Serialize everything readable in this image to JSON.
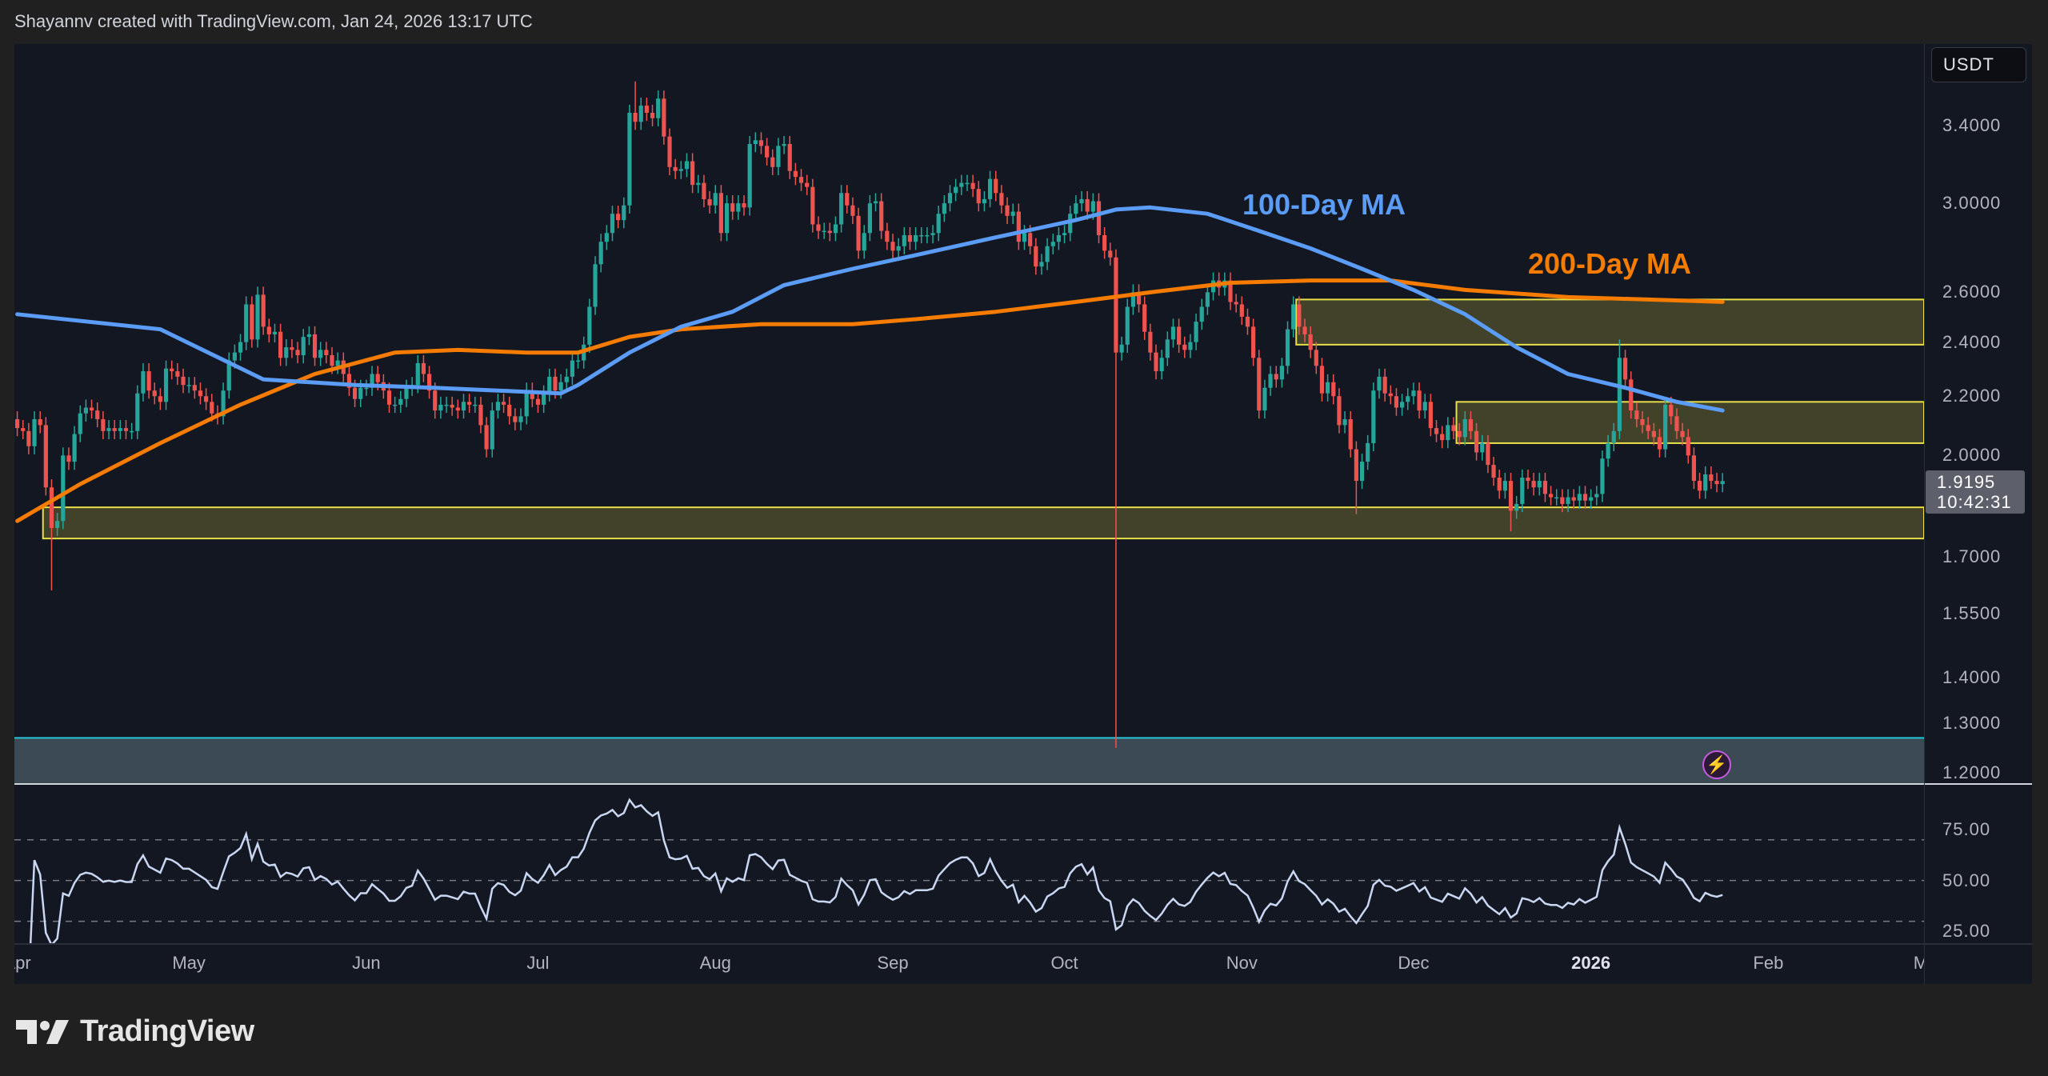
{
  "header": {
    "attribution": "Shayannv created with TradingView.com, Jan 24, 2026 13:17 UTC"
  },
  "price_axis": {
    "currency_button": "USDT",
    "ticks": [
      "3.4000",
      "3.0000",
      "2.6000",
      "2.4000",
      "2.2000",
      "2.0000",
      "1.7000",
      "1.5500",
      "1.4000",
      "1.3000",
      "1.2000"
    ],
    "last_price": "1.9195",
    "countdown": "10:42:31"
  },
  "rsi_axis": {
    "ticks": [
      "75.00",
      "50.00",
      "25.00"
    ],
    "levels": [
      70,
      50,
      30
    ]
  },
  "time_axis": {
    "labels": [
      {
        "text": "Apr",
        "date": "2025-04-01"
      },
      {
        "text": "May",
        "date": "2025-05-01"
      },
      {
        "text": "Jun",
        "date": "2025-06-01"
      },
      {
        "text": "Jul",
        "date": "2025-07-01"
      },
      {
        "text": "Aug",
        "date": "2025-08-01"
      },
      {
        "text": "Sep",
        "date": "2025-09-01"
      },
      {
        "text": "Oct",
        "date": "2025-10-01"
      },
      {
        "text": "Nov",
        "date": "2025-11-01"
      },
      {
        "text": "Dec",
        "date": "2025-12-01"
      },
      {
        "text": "2026",
        "date": "2026-01-01",
        "bold": true
      },
      {
        "text": "Feb",
        "date": "2026-02-01"
      },
      {
        "text": "Mar",
        "date": "2026-03-01"
      }
    ]
  },
  "annotations": {
    "ma100_label": "100-Day MA",
    "ma200_label": "200-Day MA"
  },
  "colors": {
    "background": "#131722",
    "up": "#26a69a",
    "down": "#ef5350",
    "ma100": "#5b9cf6",
    "ma200": "#f57c00",
    "zone_fill": "#4a4a2a",
    "zone_border": "#e8e04a",
    "rsi": "#c9d7f2",
    "lower_band": "#3b4a54"
  },
  "icons": {
    "alert": "lightning-icon",
    "logo": "tradingview-logo"
  },
  "footer": {
    "brand": "TradingView"
  },
  "chart_data": {
    "type": "candlestick",
    "scale": "log",
    "ylim": [
      1.2,
      3.6
    ],
    "start_date": "2025-04-01",
    "interval": "1D",
    "closes": [
      2.09,
      2.08,
      2.03,
      2.12,
      2.1,
      1.9,
      1.78,
      1.8,
      2.0,
      1.98,
      2.07,
      2.14,
      2.16,
      2.15,
      2.12,
      2.08,
      2.09,
      2.08,
      2.09,
      2.08,
      2.08,
      2.21,
      2.29,
      2.22,
      2.2,
      2.18,
      2.3,
      2.29,
      2.27,
      2.24,
      2.24,
      2.22,
      2.2,
      2.18,
      2.14,
      2.13,
      2.22,
      2.33,
      2.36,
      2.4,
      2.55,
      2.41,
      2.59,
      2.46,
      2.43,
      2.44,
      2.34,
      2.38,
      2.37,
      2.35,
      2.42,
      2.43,
      2.34,
      2.37,
      2.35,
      2.31,
      2.33,
      2.28,
      2.23,
      2.19,
      2.23,
      2.23,
      2.28,
      2.25,
      2.22,
      2.17,
      2.17,
      2.19,
      2.23,
      2.24,
      2.32,
      2.28,
      2.22,
      2.15,
      2.17,
      2.17,
      2.16,
      2.15,
      2.18,
      2.17,
      2.17,
      2.1,
      2.02,
      2.15,
      2.18,
      2.17,
      2.13,
      2.11,
      2.13,
      2.22,
      2.19,
      2.17,
      2.21,
      2.27,
      2.22,
      2.25,
      2.27,
      2.33,
      2.33,
      2.39,
      2.54,
      2.72,
      2.82,
      2.86,
      2.95,
      2.92,
      2.99,
      3.47,
      3.42,
      3.51,
      3.47,
      3.44,
      3.55,
      3.34,
      3.18,
      3.16,
      3.17,
      3.21,
      3.09,
      3.1,
      3.02,
      2.99,
      3.05,
      2.86,
      3.0,
      2.96,
      3.0,
      2.98,
      3.3,
      3.32,
      3.29,
      3.23,
      3.18,
      3.29,
      3.3,
      3.16,
      3.13,
      3.1,
      3.08,
      2.9,
      2.87,
      2.87,
      2.86,
      2.9,
      3.05,
      2.99,
      2.94,
      2.78,
      2.86,
      3.0,
      3.01,
      2.87,
      2.82,
      2.78,
      2.8,
      2.85,
      2.82,
      2.85,
      2.85,
      2.85,
      2.86,
      2.95,
      3.0,
      3.05,
      3.08,
      3.1,
      3.1,
      3.07,
      3.0,
      3.02,
      3.12,
      3.05,
      2.99,
      2.94,
      2.96,
      2.82,
      2.86,
      2.8,
      2.71,
      2.73,
      2.8,
      2.82,
      2.85,
      2.86,
      2.95,
      3.0,
      3.02,
      2.96,
      3.01,
      2.85,
      2.78,
      2.75,
      2.36,
      2.39,
      2.54,
      2.6,
      2.55,
      2.44,
      2.36,
      2.29,
      2.34,
      2.41,
      2.46,
      2.39,
      2.37,
      2.4,
      2.48,
      2.54,
      2.6,
      2.65,
      2.62,
      2.65,
      2.56,
      2.55,
      2.5,
      2.46,
      2.34,
      2.15,
      2.23,
      2.28,
      2.26,
      2.31,
      2.45,
      2.55,
      2.46,
      2.43,
      2.37,
      2.31,
      2.21,
      2.25,
      2.2,
      2.1,
      2.12,
      2.02,
      1.92,
      1.98,
      2.04,
      2.22,
      2.27,
      2.21,
      2.2,
      2.16,
      2.18,
      2.2,
      2.22,
      2.15,
      2.18,
      2.09,
      2.07,
      2.05,
      2.1,
      2.08,
      2.06,
      2.12,
      2.08,
      2.01,
      2.04,
      1.97,
      1.93,
      1.89,
      1.92,
      1.83,
      1.85,
      1.93,
      1.92,
      1.9,
      1.92,
      1.88,
      1.87,
      1.87,
      1.85,
      1.87,
      1.86,
      1.88,
      1.86,
      1.87,
      1.88,
      1.99,
      2.04,
      2.08,
      2.34,
      2.26,
      2.15,
      2.12,
      2.1,
      2.08,
      2.06,
      2.02,
      2.17,
      2.13,
      2.08,
      2.06,
      2.0,
      1.92,
      1.89,
      1.94,
      1.92,
      1.91,
      1.9195
    ],
    "extremes": [
      {
        "date": "2025-04-07",
        "low": 1.61
      },
      {
        "date": "2025-07-18",
        "high": 3.65
      },
      {
        "date": "2025-10-10",
        "low": 1.25
      },
      {
        "date": "2026-01-06",
        "high": 2.41
      },
      {
        "date": "2025-11-21",
        "low": 1.82
      },
      {
        "date": "2025-12-18",
        "low": 1.77
      }
    ],
    "ma100": [
      [
        "2025-04-01",
        2.51
      ],
      [
        "2025-04-26",
        2.45
      ],
      [
        "2025-05-14",
        2.26
      ],
      [
        "2025-05-30",
        2.24
      ],
      [
        "2025-06-13",
        2.23
      ],
      [
        "2025-06-24",
        2.22
      ],
      [
        "2025-07-05",
        2.21
      ],
      [
        "2025-07-08",
        2.24
      ],
      [
        "2025-07-17",
        2.36
      ],
      [
        "2025-07-26",
        2.46
      ],
      [
        "2025-08-04",
        2.52
      ],
      [
        "2025-08-13",
        2.63
      ],
      [
        "2025-08-25",
        2.7
      ],
      [
        "2025-09-05",
        2.76
      ],
      [
        "2025-09-19",
        2.84
      ],
      [
        "2025-10-03",
        2.92
      ],
      [
        "2025-10-10",
        2.97
      ],
      [
        "2025-10-16",
        2.98
      ],
      [
        "2025-10-26",
        2.95
      ],
      [
        "2025-11-04",
        2.87
      ],
      [
        "2025-11-13",
        2.79
      ],
      [
        "2025-11-22",
        2.7
      ],
      [
        "2025-12-01",
        2.61
      ],
      [
        "2025-12-10",
        2.51
      ],
      [
        "2025-12-19",
        2.38
      ],
      [
        "2025-12-28",
        2.28
      ],
      [
        "2026-01-07",
        2.23
      ],
      [
        "2026-01-16",
        2.18
      ],
      [
        "2026-01-24",
        2.15
      ]
    ],
    "ma200": [
      [
        "2025-04-01",
        1.8
      ],
      [
        "2025-04-12",
        1.91
      ],
      [
        "2025-04-26",
        2.04
      ],
      [
        "2025-05-10",
        2.17
      ],
      [
        "2025-05-23",
        2.28
      ],
      [
        "2025-06-06",
        2.36
      ],
      [
        "2025-06-17",
        2.37
      ],
      [
        "2025-06-29",
        2.36
      ],
      [
        "2025-07-08",
        2.36
      ],
      [
        "2025-07-17",
        2.42
      ],
      [
        "2025-07-26",
        2.45
      ],
      [
        "2025-08-09",
        2.47
      ],
      [
        "2025-08-25",
        2.47
      ],
      [
        "2025-09-05",
        2.49
      ],
      [
        "2025-09-19",
        2.52
      ],
      [
        "2025-10-03",
        2.56
      ],
      [
        "2025-10-16",
        2.6
      ],
      [
        "2025-10-30",
        2.64
      ],
      [
        "2025-11-13",
        2.65
      ],
      [
        "2025-11-27",
        2.65
      ],
      [
        "2025-12-10",
        2.61
      ],
      [
        "2025-12-28",
        2.58
      ],
      [
        "2026-01-11",
        2.57
      ],
      [
        "2026-01-24",
        2.56
      ]
    ],
    "zones": [
      {
        "from": "2025-04-06",
        "top": 1.84,
        "bottom": 1.75
      },
      {
        "from": "2025-12-09",
        "top": 2.18,
        "bottom": 2.04
      },
      {
        "from": "2025-11-11",
        "top": 2.57,
        "bottom": 2.39
      }
    ],
    "lower_band": {
      "top": 1.27,
      "bottom": 1.2
    },
    "indicator": {
      "type": "RSI",
      "period": 14
    }
  }
}
